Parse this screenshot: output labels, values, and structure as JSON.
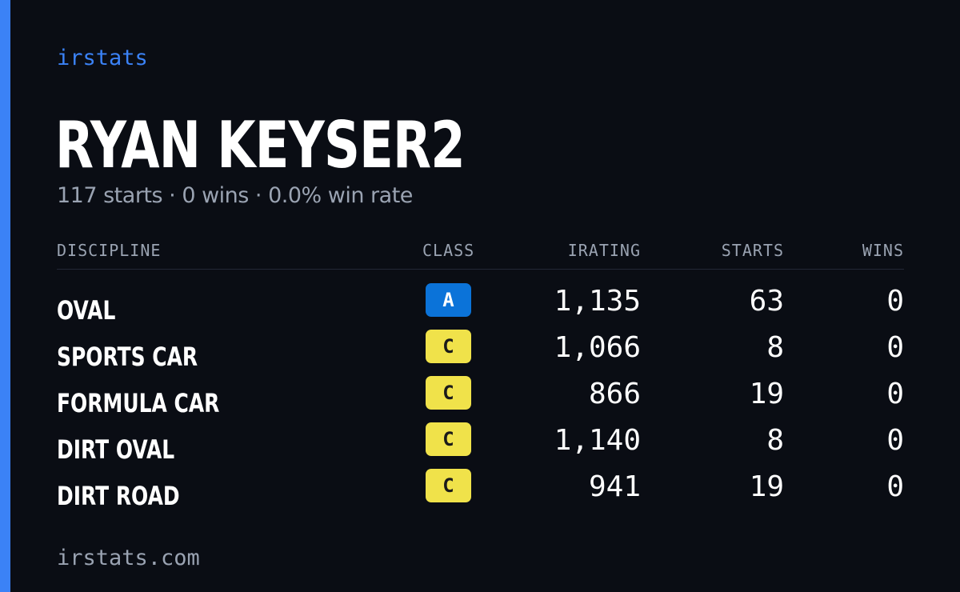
{
  "brand": "irstats",
  "driver": {
    "name": "RYAN KEYSER2",
    "summary": "117 starts · 0 wins · 0.0% win rate"
  },
  "table": {
    "headers": {
      "discipline": "DISCIPLINE",
      "class": "CLASS",
      "irating": "IRATING",
      "starts": "STARTS",
      "wins": "WINS"
    },
    "rows": [
      {
        "discipline": "OVAL",
        "class": "A",
        "irating": "1,135",
        "starts": "63",
        "wins": "0"
      },
      {
        "discipline": "SPORTS CAR",
        "class": "C",
        "irating": "1,066",
        "starts": "8",
        "wins": "0"
      },
      {
        "discipline": "FORMULA CAR",
        "class": "C",
        "irating": "866",
        "starts": "19",
        "wins": "0"
      },
      {
        "discipline": "DIRT OVAL",
        "class": "C",
        "irating": "1,140",
        "starts": "8",
        "wins": "0"
      },
      {
        "discipline": "DIRT ROAD",
        "class": "C",
        "irating": "941",
        "starts": "19",
        "wins": "0"
      }
    ]
  },
  "footer": {
    "site": "irstats.com"
  },
  "colors": {
    "background": "#0a0d14",
    "accent": "#3b82f6",
    "class_a": "#0b73d9",
    "class_c": "#f0e24a",
    "muted_text": "#9aa3b2"
  }
}
